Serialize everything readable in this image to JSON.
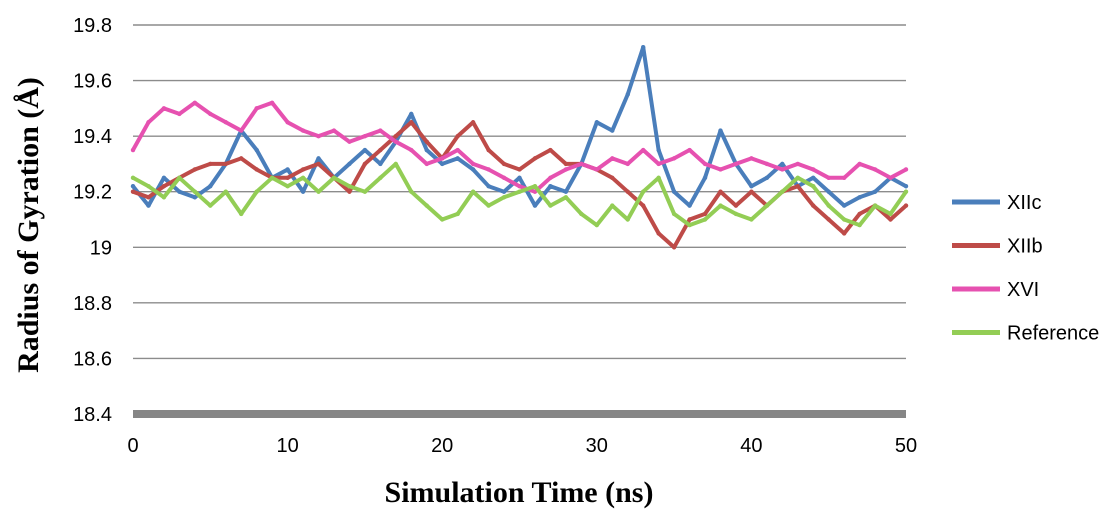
{
  "chart_data": {
    "type": "line",
    "title": "",
    "xlabel": "Simulation Time (ns)",
    "ylabel": "Radius of Gyration (Å)",
    "xlim": [
      0,
      50
    ],
    "ylim": [
      18.4,
      19.8
    ],
    "xticks": [
      0,
      10,
      20,
      30,
      40,
      50
    ],
    "yticks": [
      18.4,
      18.6,
      18.8,
      19,
      19.2,
      19.4,
      19.6,
      19.8
    ],
    "ytick_labels": [
      "18.4",
      "18.6",
      "18.8",
      "19",
      "19.2",
      "19.4",
      "19.6",
      "19.8"
    ],
    "xtick_labels": [
      "0",
      "10",
      "20",
      "30",
      "40",
      "50"
    ],
    "grid": "horizontal",
    "legend_position": "right",
    "x": [
      0,
      1,
      2,
      3,
      4,
      5,
      6,
      7,
      8,
      9,
      10,
      11,
      12,
      13,
      14,
      15,
      16,
      17,
      18,
      19,
      20,
      21,
      22,
      23,
      24,
      25,
      26,
      27,
      28,
      29,
      30,
      31,
      32,
      33,
      34,
      35,
      36,
      37,
      38,
      39,
      40,
      41,
      42,
      43,
      44,
      45,
      46,
      47,
      48,
      49,
      50
    ],
    "series": [
      {
        "name": "XIIc",
        "color": "#4a7ebb",
        "values": [
          19.22,
          19.15,
          19.25,
          19.2,
          19.18,
          19.22,
          19.3,
          19.42,
          19.35,
          19.25,
          19.28,
          19.2,
          19.32,
          19.25,
          19.3,
          19.35,
          19.3,
          19.38,
          19.48,
          19.35,
          19.3,
          19.32,
          19.28,
          19.22,
          19.2,
          19.25,
          19.15,
          19.22,
          19.2,
          19.3,
          19.45,
          19.42,
          19.55,
          19.72,
          19.35,
          19.2,
          19.15,
          19.25,
          19.42,
          19.3,
          19.22,
          19.25,
          19.3,
          19.22,
          19.25,
          19.2,
          19.15,
          19.18,
          19.2,
          19.25,
          19.22
        ]
      },
      {
        "name": "XIIb",
        "color": "#be4b48",
        "values": [
          19.2,
          19.18,
          19.22,
          19.25,
          19.28,
          19.3,
          19.3,
          19.32,
          19.28,
          19.25,
          19.25,
          19.28,
          19.3,
          19.25,
          19.2,
          19.3,
          19.35,
          19.4,
          19.45,
          19.38,
          19.32,
          19.4,
          19.45,
          19.35,
          19.3,
          19.28,
          19.32,
          19.35,
          19.3,
          19.3,
          19.28,
          19.25,
          19.2,
          19.15,
          19.05,
          19.0,
          19.1,
          19.12,
          19.2,
          19.15,
          19.2,
          19.15,
          19.2,
          19.22,
          19.15,
          19.1,
          19.05,
          19.12,
          19.15,
          19.1,
          19.15
        ]
      },
      {
        "name": "XVI",
        "color": "#e651b0",
        "values": [
          19.35,
          19.45,
          19.5,
          19.48,
          19.52,
          19.48,
          19.45,
          19.42,
          19.5,
          19.52,
          19.45,
          19.42,
          19.4,
          19.42,
          19.38,
          19.4,
          19.42,
          19.38,
          19.35,
          19.3,
          19.32,
          19.35,
          19.3,
          19.28,
          19.25,
          19.22,
          19.2,
          19.25,
          19.28,
          19.3,
          19.28,
          19.32,
          19.3,
          19.35,
          19.3,
          19.32,
          19.35,
          19.3,
          19.28,
          19.3,
          19.32,
          19.3,
          19.28,
          19.3,
          19.28,
          19.25,
          19.25,
          19.3,
          19.28,
          19.25,
          19.28
        ]
      },
      {
        "name": "Reference",
        "color": "#93cd55",
        "values": [
          19.25,
          19.22,
          19.18,
          19.25,
          19.2,
          19.15,
          19.2,
          19.12,
          19.2,
          19.25,
          19.22,
          19.25,
          19.2,
          19.25,
          19.22,
          19.2,
          19.25,
          19.3,
          19.2,
          19.15,
          19.1,
          19.12,
          19.2,
          19.15,
          19.18,
          19.2,
          19.22,
          19.15,
          19.18,
          19.12,
          19.08,
          19.15,
          19.1,
          19.2,
          19.25,
          19.12,
          19.08,
          19.1,
          19.15,
          19.12,
          19.1,
          19.15,
          19.2,
          19.25,
          19.22,
          19.15,
          19.1,
          19.08,
          19.15,
          19.12,
          19.2
        ]
      }
    ]
  }
}
